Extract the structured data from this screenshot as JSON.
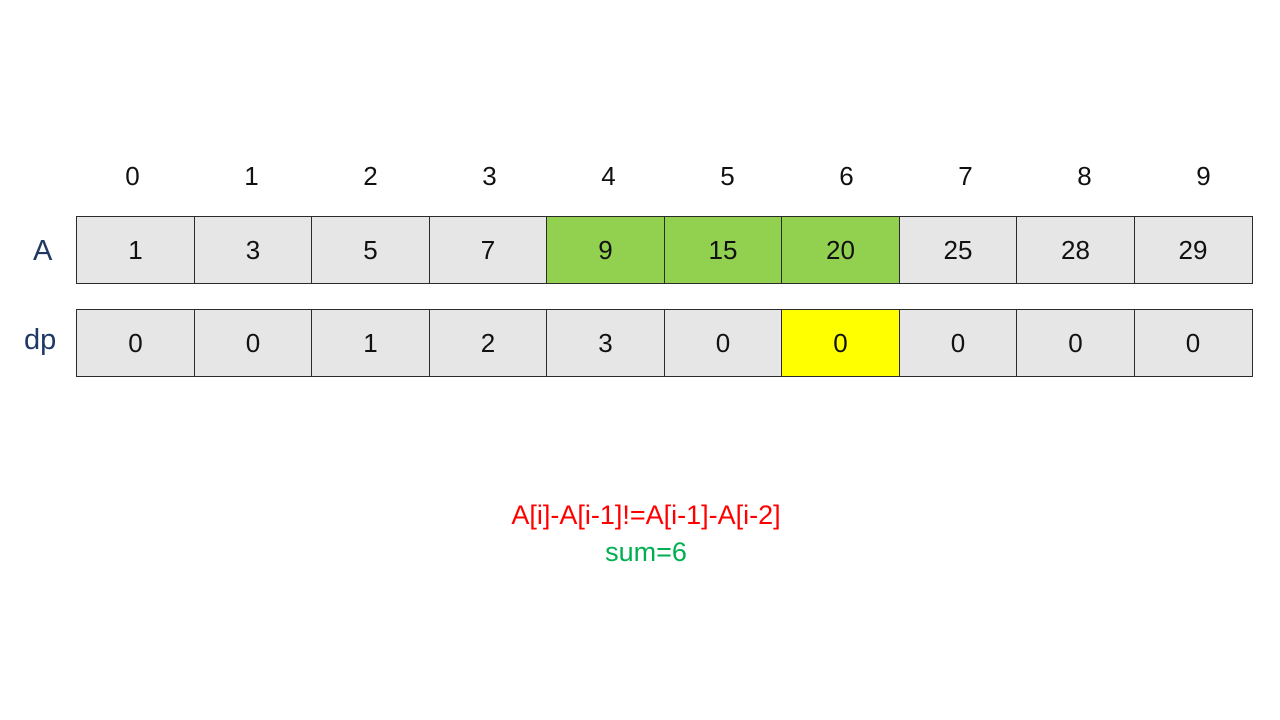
{
  "indices": [
    "0",
    "1",
    "2",
    "3",
    "4",
    "5",
    "6",
    "7",
    "8",
    "9"
  ],
  "rows": {
    "a": {
      "label": "A",
      "values": [
        "1",
        "3",
        "5",
        "7",
        "9",
        "15",
        "20",
        "25",
        "28",
        "29"
      ]
    },
    "dp": {
      "label": "dp",
      "values": [
        "0",
        "0",
        "1",
        "2",
        "3",
        "0",
        "0",
        "0",
        "0",
        "0"
      ]
    }
  },
  "highlights": {
    "a_green_indices": [
      4,
      5,
      6
    ],
    "dp_yellow_index": 6,
    "green_color": "#92d050",
    "yellow_color": "#ffff00"
  },
  "condition_text": "A[i]-A[i-1]!=A[i-1]-A[i-2]",
  "sum_text": "sum=6",
  "colors": {
    "condition": "#ff0000",
    "sum": "#00b050",
    "row_label": "#1f3864",
    "cell_background": "#e6e6e6"
  }
}
